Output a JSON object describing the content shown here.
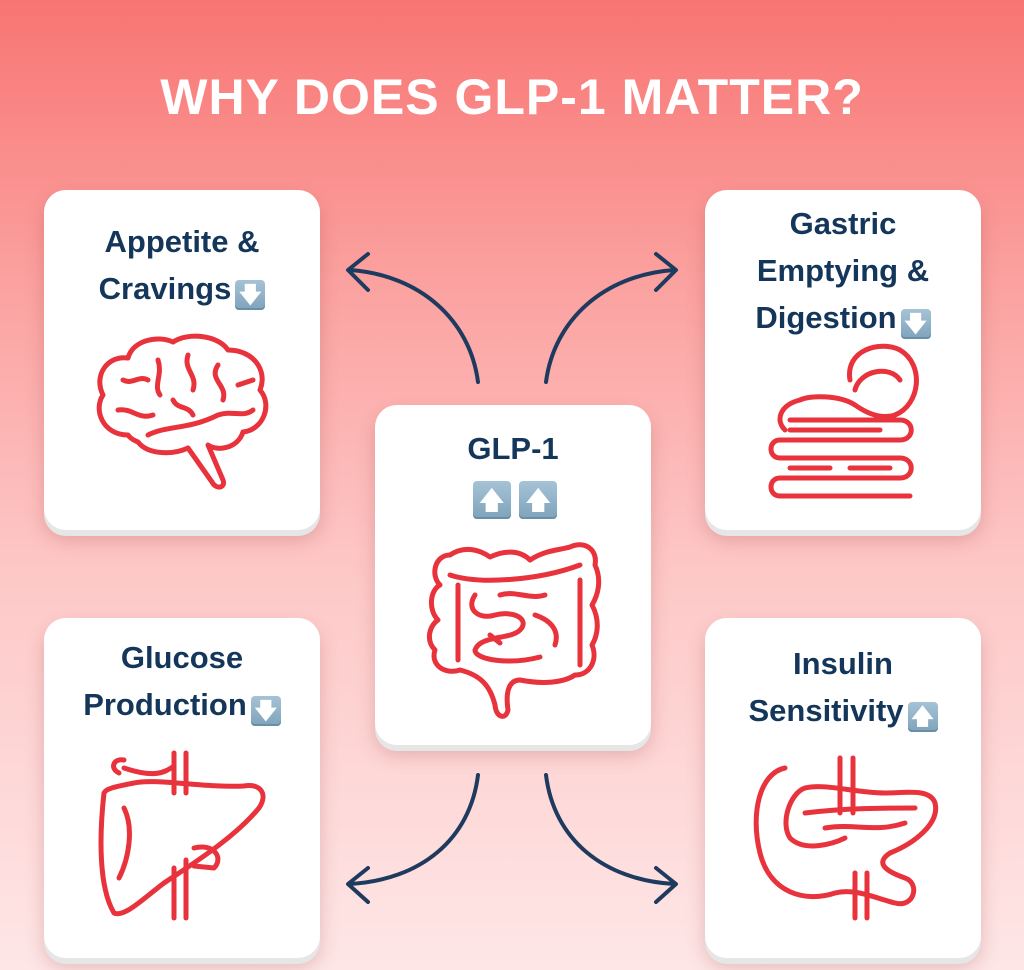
{
  "title": "WHY DOES GLP-1 MATTER?",
  "colors": {
    "text": "#14365a",
    "icon": "#e8323c",
    "arrow": "#1e3a5f",
    "badge": "#8fb0c6"
  },
  "center": {
    "label": "GLP-1",
    "badges": [
      "up",
      "up"
    ],
    "badge_glyphs": [
      "🡅",
      "🡅"
    ],
    "icon": "intestines-icon"
  },
  "cards": [
    {
      "lines": [
        "Appetite &",
        "Cravings"
      ],
      "trend": "down",
      "glyph": "🡇",
      "icon": "brain-icon"
    },
    {
      "lines": [
        "Gastric",
        "Emptying &",
        "Digestion"
      ],
      "trend": "down",
      "glyph": "🡇",
      "icon": "stomach-icon"
    },
    {
      "lines": [
        "Glucose",
        "Production"
      ],
      "trend": "down",
      "glyph": "🡇",
      "icon": "liver-icon"
    },
    {
      "lines": [
        "Insulin",
        "Sensitivity"
      ],
      "trend": "up",
      "glyph": "🡅",
      "icon": "pancreas-icon"
    }
  ]
}
